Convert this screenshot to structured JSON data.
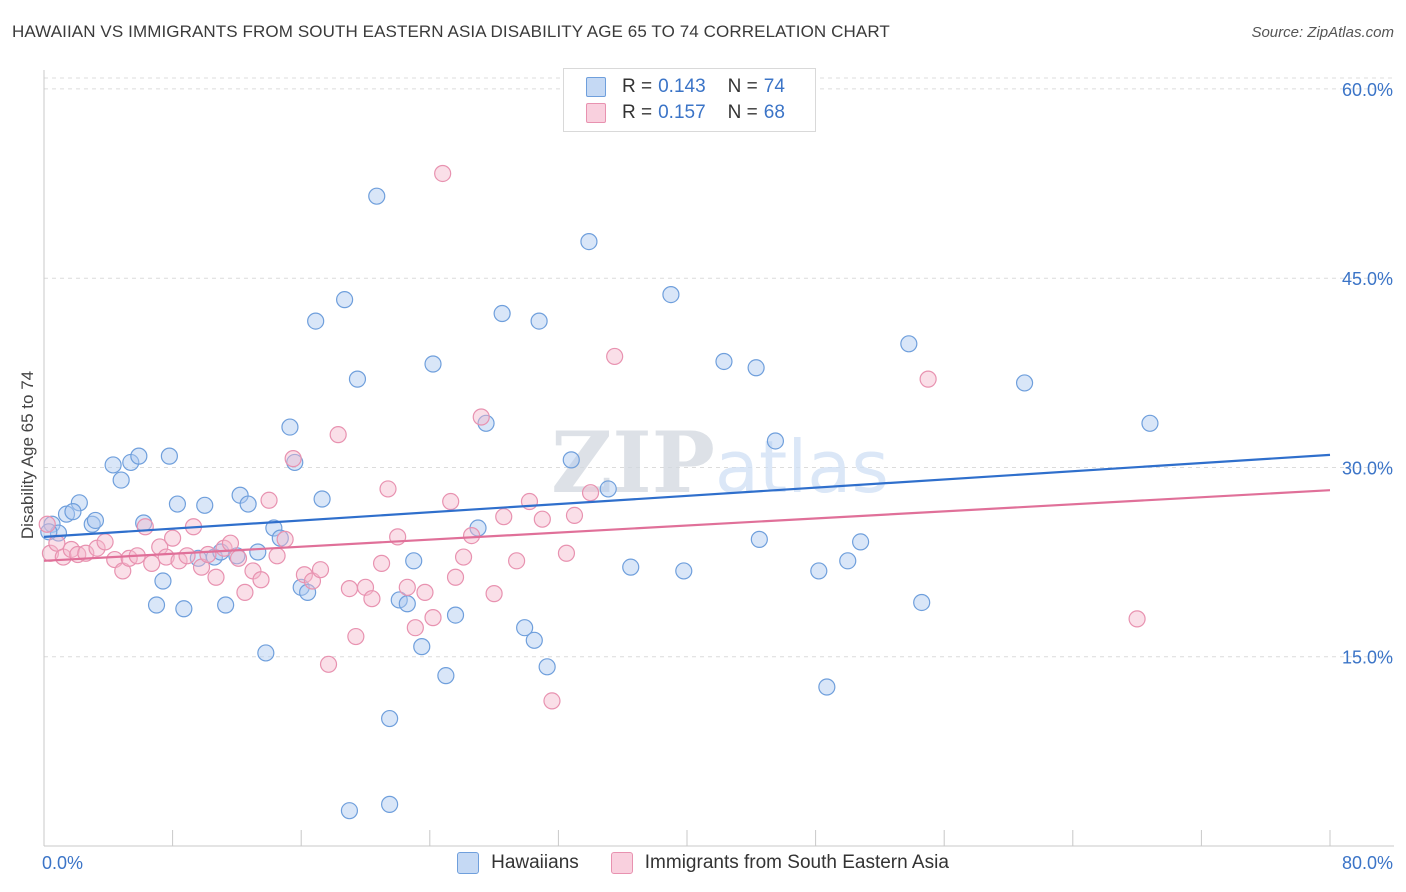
{
  "chart_data": {
    "type": "scatter",
    "title": "HAWAIIAN VS IMMIGRANTS FROM SOUTH EASTERN ASIA DISABILITY AGE 65 TO 74 CORRELATION CHART",
    "source": "Source: ZipAtlas.com",
    "ylabel": "Disability Age 65 to 74",
    "xlabel": "",
    "xlim": [
      0,
      80
    ],
    "ylim": [
      0,
      61.5
    ],
    "x_tick_labels": [
      "0.0%",
      "80.0%"
    ],
    "y_ticks": [
      15,
      30,
      45,
      60
    ],
    "y_tick_labels": [
      "15.0%",
      "30.0%",
      "45.0%",
      "60.0%"
    ],
    "grid": true,
    "watermark": "ZIPatlas",
    "legend": [
      {
        "r_label": "R =",
        "r_value": "0.143",
        "n_label": "N =",
        "n_value": "74"
      },
      {
        "r_label": "R =",
        "r_value": "0.157",
        "n_label": "N =",
        "n_value": "68"
      }
    ],
    "series": [
      {
        "name": "Hawaiians",
        "fill": "#aac8ef",
        "stroke": "#6f9fdc",
        "line_color": "#2f6fcc",
        "trend": [
          [
            0,
            24.5
          ],
          [
            80,
            31.0
          ]
        ],
        "points": [
          [
            0.5,
            25.5
          ],
          [
            0.9,
            24.8
          ],
          [
            1.4,
            26.3
          ],
          [
            2.2,
            27.2
          ],
          [
            1.8,
            26.5
          ],
          [
            3.0,
            25.5
          ],
          [
            3.2,
            25.8
          ],
          [
            4.3,
            30.2
          ],
          [
            4.8,
            29.0
          ],
          [
            5.4,
            30.4
          ],
          [
            5.9,
            30.9
          ],
          [
            6.2,
            25.6
          ],
          [
            7.0,
            19.1
          ],
          [
            7.4,
            21.0
          ],
          [
            7.8,
            30.9
          ],
          [
            8.3,
            27.1
          ],
          [
            8.7,
            18.8
          ],
          [
            9.6,
            22.8
          ],
          [
            10.0,
            27.0
          ],
          [
            10.6,
            22.9
          ],
          [
            11.0,
            23.3
          ],
          [
            11.3,
            19.1
          ],
          [
            12.0,
            23.0
          ],
          [
            12.2,
            27.8
          ],
          [
            12.7,
            27.1
          ],
          [
            13.3,
            23.3
          ],
          [
            13.8,
            15.3
          ],
          [
            14.3,
            25.2
          ],
          [
            14.7,
            24.4
          ],
          [
            15.3,
            33.2
          ],
          [
            15.6,
            30.4
          ],
          [
            16.0,
            20.5
          ],
          [
            16.4,
            20.1
          ],
          [
            17.3,
            27.5
          ],
          [
            16.9,
            41.6
          ],
          [
            18.7,
            43.3
          ],
          [
            19.5,
            37.0
          ],
          [
            20.7,
            51.5
          ],
          [
            21.5,
            10.1
          ],
          [
            19.0,
            2.8
          ],
          [
            21.5,
            3.3
          ],
          [
            22.1,
            19.5
          ],
          [
            22.6,
            19.2
          ],
          [
            23.0,
            22.6
          ],
          [
            23.5,
            15.8
          ],
          [
            24.2,
            38.2
          ],
          [
            25.0,
            13.5
          ],
          [
            25.6,
            18.3
          ],
          [
            27.0,
            25.2
          ],
          [
            27.5,
            33.5
          ],
          [
            28.5,
            42.2
          ],
          [
            29.9,
            17.3
          ],
          [
            30.5,
            16.3
          ],
          [
            30.8,
            41.6
          ],
          [
            31.3,
            14.2
          ],
          [
            32.8,
            30.6
          ],
          [
            33.9,
            47.9
          ],
          [
            35.1,
            28.3
          ],
          [
            36.5,
            22.1
          ],
          [
            39.0,
            43.7
          ],
          [
            39.8,
            21.8
          ],
          [
            42.3,
            38.4
          ],
          [
            44.3,
            37.9
          ],
          [
            44.5,
            24.3
          ],
          [
            45.5,
            32.1
          ],
          [
            48.2,
            21.8
          ],
          [
            48.7,
            12.6
          ],
          [
            50.0,
            22.6
          ],
          [
            50.8,
            24.1
          ],
          [
            53.8,
            39.8
          ],
          [
            54.6,
            19.3
          ],
          [
            61.0,
            36.7
          ],
          [
            68.8,
            33.5
          ],
          [
            0.3,
            24.9
          ]
        ]
      },
      {
        "name": "Immigrants from South Eastern Asia",
        "fill": "#f5b9cd",
        "stroke": "#e892b0",
        "line_color": "#e07099",
        "trend": [
          [
            0,
            22.6
          ],
          [
            80,
            28.2
          ]
        ],
        "points": [
          [
            0.2,
            25.5
          ],
          [
            0.4,
            23.2
          ],
          [
            0.8,
            24.0
          ],
          [
            1.2,
            22.9
          ],
          [
            1.7,
            23.5
          ],
          [
            2.1,
            23.1
          ],
          [
            2.6,
            23.2
          ],
          [
            3.3,
            23.6
          ],
          [
            3.8,
            24.1
          ],
          [
            4.4,
            22.7
          ],
          [
            4.9,
            21.8
          ],
          [
            5.3,
            22.8
          ],
          [
            5.8,
            23.0
          ],
          [
            6.3,
            25.3
          ],
          [
            6.7,
            22.4
          ],
          [
            7.2,
            23.7
          ],
          [
            7.6,
            22.9
          ],
          [
            8.0,
            24.4
          ],
          [
            8.4,
            22.6
          ],
          [
            8.9,
            23.0
          ],
          [
            9.3,
            25.3
          ],
          [
            9.8,
            22.1
          ],
          [
            10.2,
            23.1
          ],
          [
            10.7,
            21.3
          ],
          [
            11.2,
            23.6
          ],
          [
            11.6,
            24.0
          ],
          [
            12.1,
            22.8
          ],
          [
            12.5,
            20.1
          ],
          [
            13.0,
            21.8
          ],
          [
            13.5,
            21.1
          ],
          [
            14.0,
            27.4
          ],
          [
            14.5,
            23.0
          ],
          [
            15.0,
            24.3
          ],
          [
            15.5,
            30.7
          ],
          [
            16.2,
            21.5
          ],
          [
            16.7,
            21.0
          ],
          [
            17.2,
            21.9
          ],
          [
            17.7,
            14.4
          ],
          [
            18.3,
            32.6
          ],
          [
            19.0,
            20.4
          ],
          [
            19.4,
            16.6
          ],
          [
            20.0,
            20.5
          ],
          [
            20.4,
            19.6
          ],
          [
            21.0,
            22.4
          ],
          [
            21.4,
            28.3
          ],
          [
            22.0,
            24.5
          ],
          [
            22.6,
            20.5
          ],
          [
            23.1,
            17.3
          ],
          [
            23.7,
            20.1
          ],
          [
            24.2,
            18.1
          ],
          [
            24.8,
            53.3
          ],
          [
            25.3,
            27.3
          ],
          [
            25.6,
            21.3
          ],
          [
            26.1,
            22.9
          ],
          [
            26.6,
            24.6
          ],
          [
            27.2,
            34.0
          ],
          [
            28.0,
            20.0
          ],
          [
            28.6,
            26.1
          ],
          [
            29.4,
            22.6
          ],
          [
            30.2,
            27.3
          ],
          [
            31.0,
            25.9
          ],
          [
            31.6,
            11.5
          ],
          [
            32.5,
            23.2
          ],
          [
            33.0,
            26.2
          ],
          [
            34.0,
            28.0
          ],
          [
            35.5,
            38.8
          ],
          [
            55.0,
            37.0
          ],
          [
            68.0,
            18.0
          ]
        ]
      }
    ]
  }
}
